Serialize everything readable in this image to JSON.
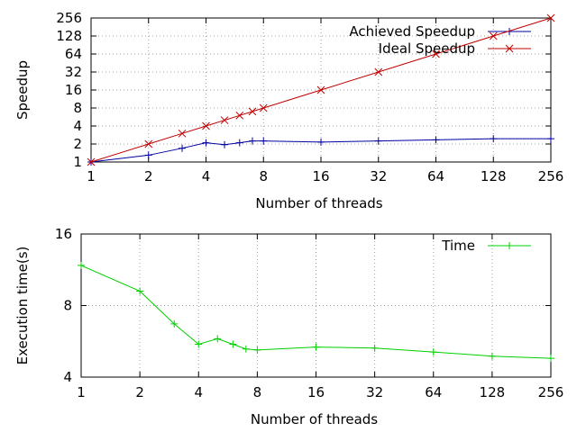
{
  "chart_data": [
    {
      "type": "line",
      "xlabel": "Number of threads",
      "ylabel": "Speedup",
      "x_scale": "log2",
      "y_scale": "log2",
      "xlim": [
        1,
        256
      ],
      "ylim": [
        1,
        256
      ],
      "x_ticks": [
        "1",
        "2",
        "4",
        "8",
        "16",
        "32",
        "64",
        "128",
        "256"
      ],
      "y_ticks": [
        "1",
        "2",
        "4",
        "8",
        "16",
        "32",
        "64",
        "128",
        "256"
      ],
      "grid": true,
      "legend_position": "top-right",
      "series": [
        {
          "name": "Achieved Speedup",
          "color": "#0000a0",
          "marker": "plus",
          "x": [
            1,
            2,
            3,
            4,
            5,
            6,
            7,
            8,
            16,
            32,
            64,
            128,
            256
          ],
          "y": [
            1,
            1.3,
            1.7,
            2.1,
            1.95,
            2.1,
            2.25,
            2.25,
            2.15,
            2.25,
            2.35,
            2.45,
            2.45
          ]
        },
        {
          "name": "Ideal Speedup",
          "color": "#c00000",
          "marker": "cross",
          "x": [
            1,
            2,
            3,
            4,
            5,
            6,
            7,
            8,
            16,
            32,
            64,
            128,
            256
          ],
          "y": [
            1,
            2,
            3,
            4,
            5,
            6,
            7,
            8,
            16,
            32,
            64,
            128,
            256
          ]
        }
      ]
    },
    {
      "type": "line",
      "xlabel": "Number of threads",
      "ylabel": "Execution time(s)",
      "x_scale": "log2",
      "y_scale": "log2",
      "xlim": [
        1,
        256
      ],
      "ylim": [
        4,
        16
      ],
      "x_ticks": [
        "1",
        "2",
        "4",
        "8",
        "16",
        "32",
        "64",
        "128",
        "256"
      ],
      "y_ticks": [
        "4",
        "8",
        "16"
      ],
      "grid": true,
      "legend_position": "top-right",
      "series": [
        {
          "name": "Time",
          "color": "#00d000",
          "marker": "plus",
          "x": [
            1,
            2,
            3,
            4,
            5,
            6,
            7,
            8,
            16,
            32,
            64,
            128,
            256
          ],
          "y": [
            11.8,
            9.2,
            6.7,
            5.5,
            5.8,
            5.5,
            5.25,
            5.2,
            5.35,
            5.3,
            5.1,
            4.9,
            4.8
          ]
        }
      ]
    }
  ]
}
